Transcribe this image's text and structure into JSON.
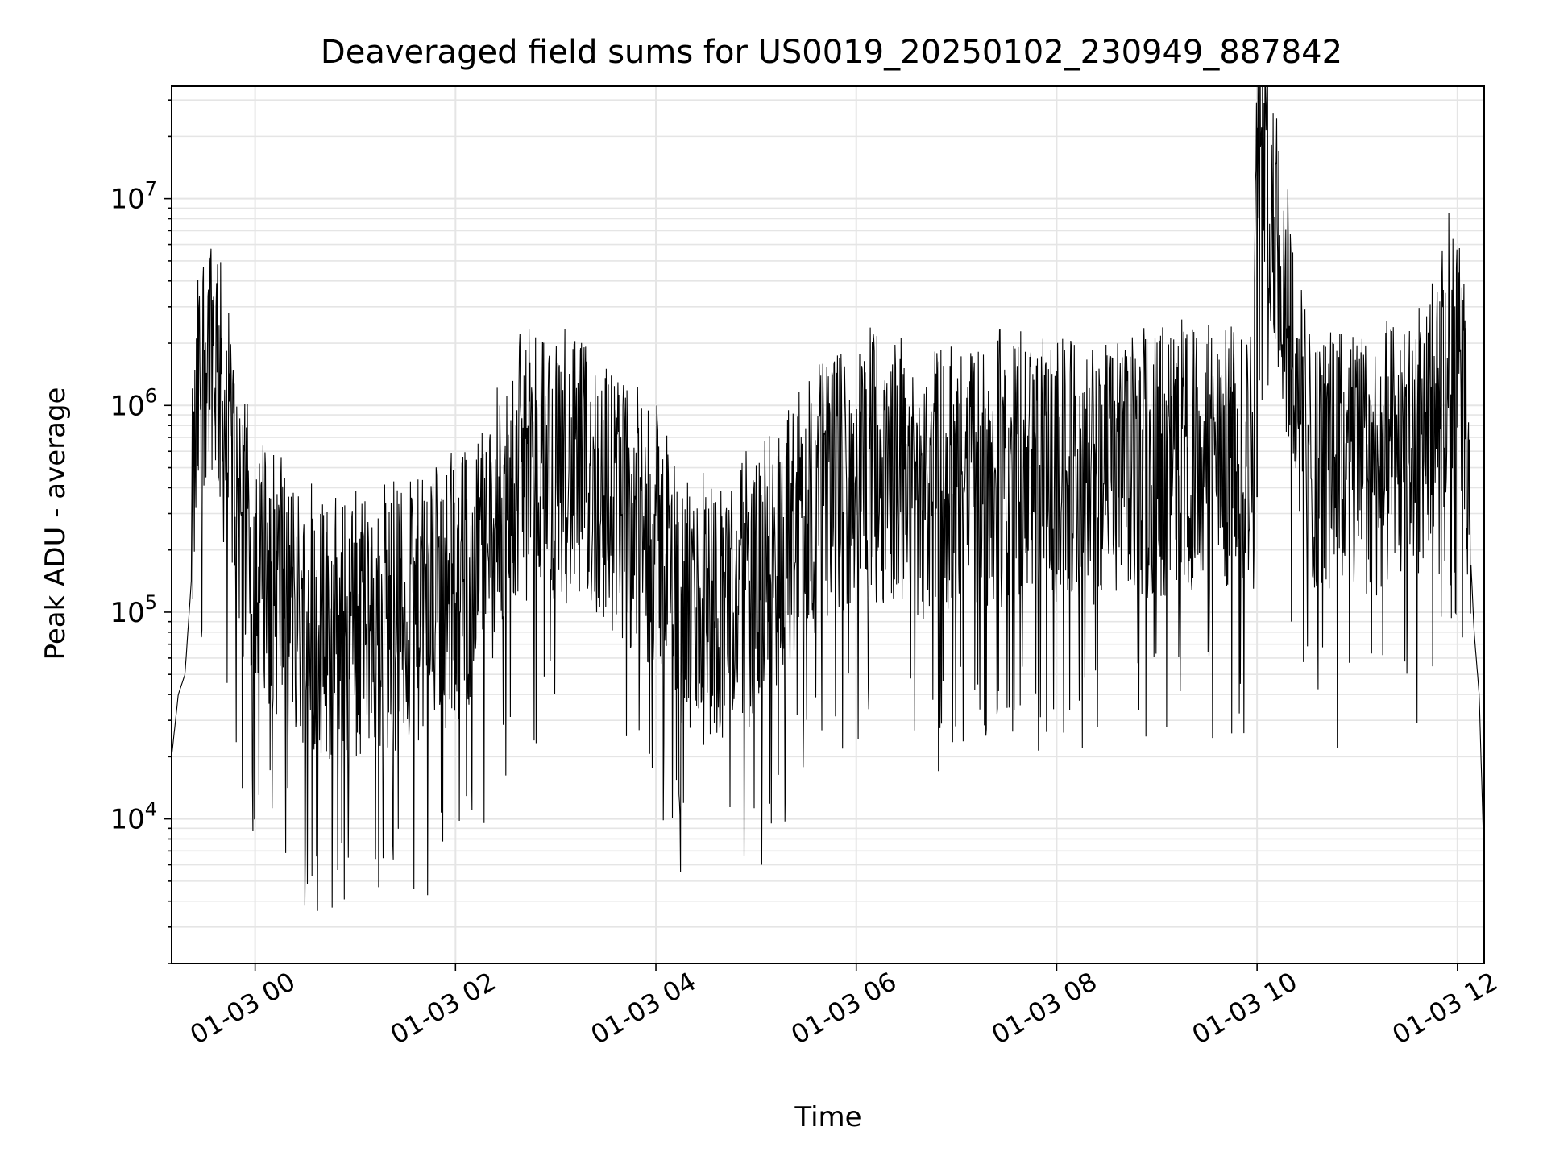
{
  "chart_data": {
    "type": "line",
    "title": "Deaveraged field sums for US0019_20250102_230949_887842",
    "xlabel": "Time",
    "ylabel": "Peak ADU - average",
    "yscale": "log",
    "ylim": [
      2000,
      35000000
    ],
    "xlim": [
      "01-02 23:10",
      "01-03 12:16"
    ],
    "grid": true,
    "colors": {
      "line": "#000000",
      "grid": "#e5e5e5",
      "axes": "#000000"
    },
    "x_ticks": [
      {
        "t": "01-03 00:00",
        "label": "01-03 00"
      },
      {
        "t": "01-03 02:00",
        "label": "01-03 02"
      },
      {
        "t": "01-03 04:00",
        "label": "01-03 04"
      },
      {
        "t": "01-03 06:00",
        "label": "01-03 06"
      },
      {
        "t": "01-03 08:00",
        "label": "01-03 08"
      },
      {
        "t": "01-03 10:00",
        "label": "01-03 10"
      },
      {
        "t": "01-03 12:00",
        "label": "01-03 12"
      }
    ],
    "y_ticks": [
      {
        "value": 10000,
        "base": "10",
        "exp": "4"
      },
      {
        "value": 100000,
        "base": "10",
        "exp": "5"
      },
      {
        "value": 1000000,
        "base": "10",
        "exp": "6"
      },
      {
        "value": 10000000,
        "base": "10",
        "exp": "7"
      }
    ],
    "series": [
      {
        "x": [
          "01-02 23:10",
          "01-02 23:14",
          "01-02 23:18",
          "01-02 23:22",
          "01-02 23:26",
          "01-02 23:30",
          "01-02 23:34",
          "01-02 23:38",
          "01-02 23:42",
          "01-02 23:46",
          "01-02 23:50",
          "01-02 23:54",
          "01-02 23:58",
          "01-03 00:10",
          "01-03 00:30",
          "01-03 00:50",
          "01-03 01:10",
          "01-03 01:30",
          "01-03 01:50",
          "01-03 02:10",
          "01-03 02:30",
          "01-03 02:45",
          "01-03 03:00",
          "01-03 03:20",
          "01-03 03:40",
          "01-03 04:00",
          "01-03 04:20",
          "01-03 04:40",
          "01-03 05:00",
          "01-03 05:20",
          "01-03 05:40",
          "01-03 06:00",
          "01-03 06:20",
          "01-03 06:40",
          "01-03 07:00",
          "01-03 07:30",
          "01-03 08:00",
          "01-03 08:30",
          "01-03 09:00",
          "01-03 09:30",
          "01-03 09:58",
          "01-03 10:00",
          "01-03 10:30",
          "01-03 11:00",
          "01-03 11:30",
          "01-03 11:45",
          "01-03 11:55",
          "01-03 12:00",
          "01-03 12:05",
          "01-03 12:10",
          "01-03 12:13",
          "01-03 12:16"
        ],
        "y": [
          20000,
          40000,
          50000,
          150000,
          700000,
          1200000,
          1400000,
          900000,
          500000,
          350000,
          250000,
          150000,
          120000,
          90000,
          60000,
          50000,
          55000,
          60000,
          70000,
          100000,
          220000,
          350000,
          320000,
          280000,
          200000,
          150000,
          60000,
          70000,
          80000,
          150000,
          250000,
          300000,
          320000,
          260000,
          280000,
          300000,
          320000,
          300000,
          330000,
          350000,
          360000,
          22000000,
          360000,
          330000,
          340000,
          600000,
          1100000,
          1000000,
          600000,
          80000,
          40000,
          6000
        ]
      }
    ]
  }
}
